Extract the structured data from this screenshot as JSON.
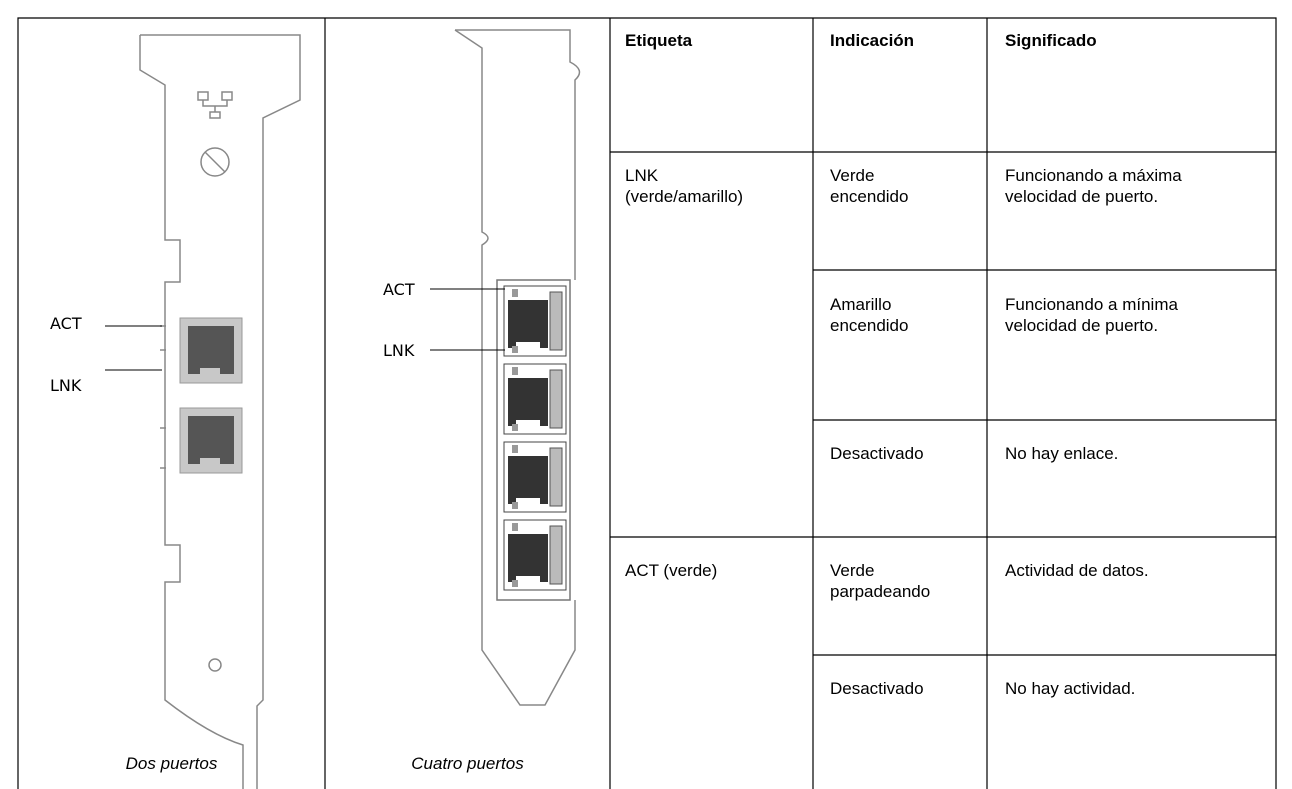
{
  "table": {
    "headers": [
      "Etiqueta",
      "Indicación",
      "Significado"
    ],
    "rows": [
      {
        "label": "LNK (verde/amarillo)",
        "states": [
          {
            "indication": "Verde encendido",
            "meaning": "Funcionando a máxima velocidad de puerto."
          },
          {
            "indication": "Amarillo encendido",
            "meaning": "Funcionando a mínima velocidad de puerto."
          },
          {
            "indication": "Desactivado",
            "meaning": "No hay enlace."
          }
        ]
      },
      {
        "label": "ACT (verde)",
        "states": [
          {
            "indication": "Verde parpadeando",
            "meaning": "Actividad de datos."
          },
          {
            "indication": "Desactivado",
            "meaning": "No hay actividad."
          }
        ]
      }
    ]
  },
  "figures": [
    {
      "caption": "Dos puertos",
      "callouts": [
        "ACT",
        "LNK"
      ]
    },
    {
      "caption": "Cuatro puertos",
      "callouts": [
        "ACT",
        "LNK"
      ]
    }
  ]
}
